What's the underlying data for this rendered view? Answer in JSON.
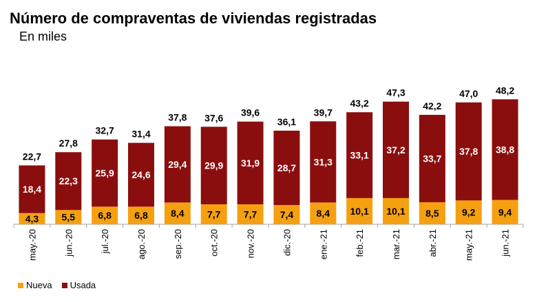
{
  "colors": {
    "nueva": "#f5a010",
    "usada": "#8b0e0e"
  },
  "chart_data": {
    "type": "bar",
    "stacked": true,
    "title": "Número de compraventas de viviendas registradas",
    "subtitle": "En miles",
    "categories": [
      "may.-20",
      "jun.-20",
      "jul.-20",
      "ago.-20",
      "sep.-20",
      "oct.-20",
      "nov.-20",
      "dic.-20",
      "ene.-21",
      "feb.-21",
      "mar.-21",
      "abr.-21",
      "may.-21",
      "jun.-21"
    ],
    "series": [
      {
        "name": "Nueva",
        "values": [
          4.3,
          5.5,
          6.8,
          6.8,
          8.4,
          7.7,
          7.7,
          7.4,
          8.4,
          10.1,
          10.1,
          8.5,
          9.2,
          9.4
        ],
        "labels": [
          "4,3",
          "5,5",
          "6,8",
          "6,8",
          "8,4",
          "7,7",
          "7,7",
          "7,4",
          "8,4",
          "10,1",
          "10,1",
          "8,5",
          "9,2",
          "9,4"
        ]
      },
      {
        "name": "Usada",
        "values": [
          18.4,
          22.3,
          25.9,
          24.6,
          29.4,
          29.9,
          31.9,
          28.7,
          31.3,
          33.1,
          37.2,
          33.7,
          37.8,
          38.8
        ],
        "labels": [
          "18,4",
          "22,3",
          "25,9",
          "24,6",
          "29,4",
          "29,9",
          "31,9",
          "28,7",
          "31,3",
          "33,1",
          "37,2",
          "33,7",
          "37,8",
          "38,8"
        ]
      }
    ],
    "totals": [
      22.7,
      27.8,
      32.7,
      31.4,
      37.8,
      37.6,
      39.6,
      36.1,
      39.7,
      43.2,
      47.3,
      42.2,
      47.0,
      48.2
    ],
    "total_labels": [
      "22,7",
      "27,8",
      "32,7",
      "31,4",
      "37,8",
      "37,6",
      "39,6",
      "36,1",
      "39,7",
      "43,2",
      "47,3",
      "42,2",
      "47,0",
      "48,2"
    ],
    "ylim": [
      0,
      52
    ],
    "grid": false,
    "legend": "bottom-left"
  }
}
